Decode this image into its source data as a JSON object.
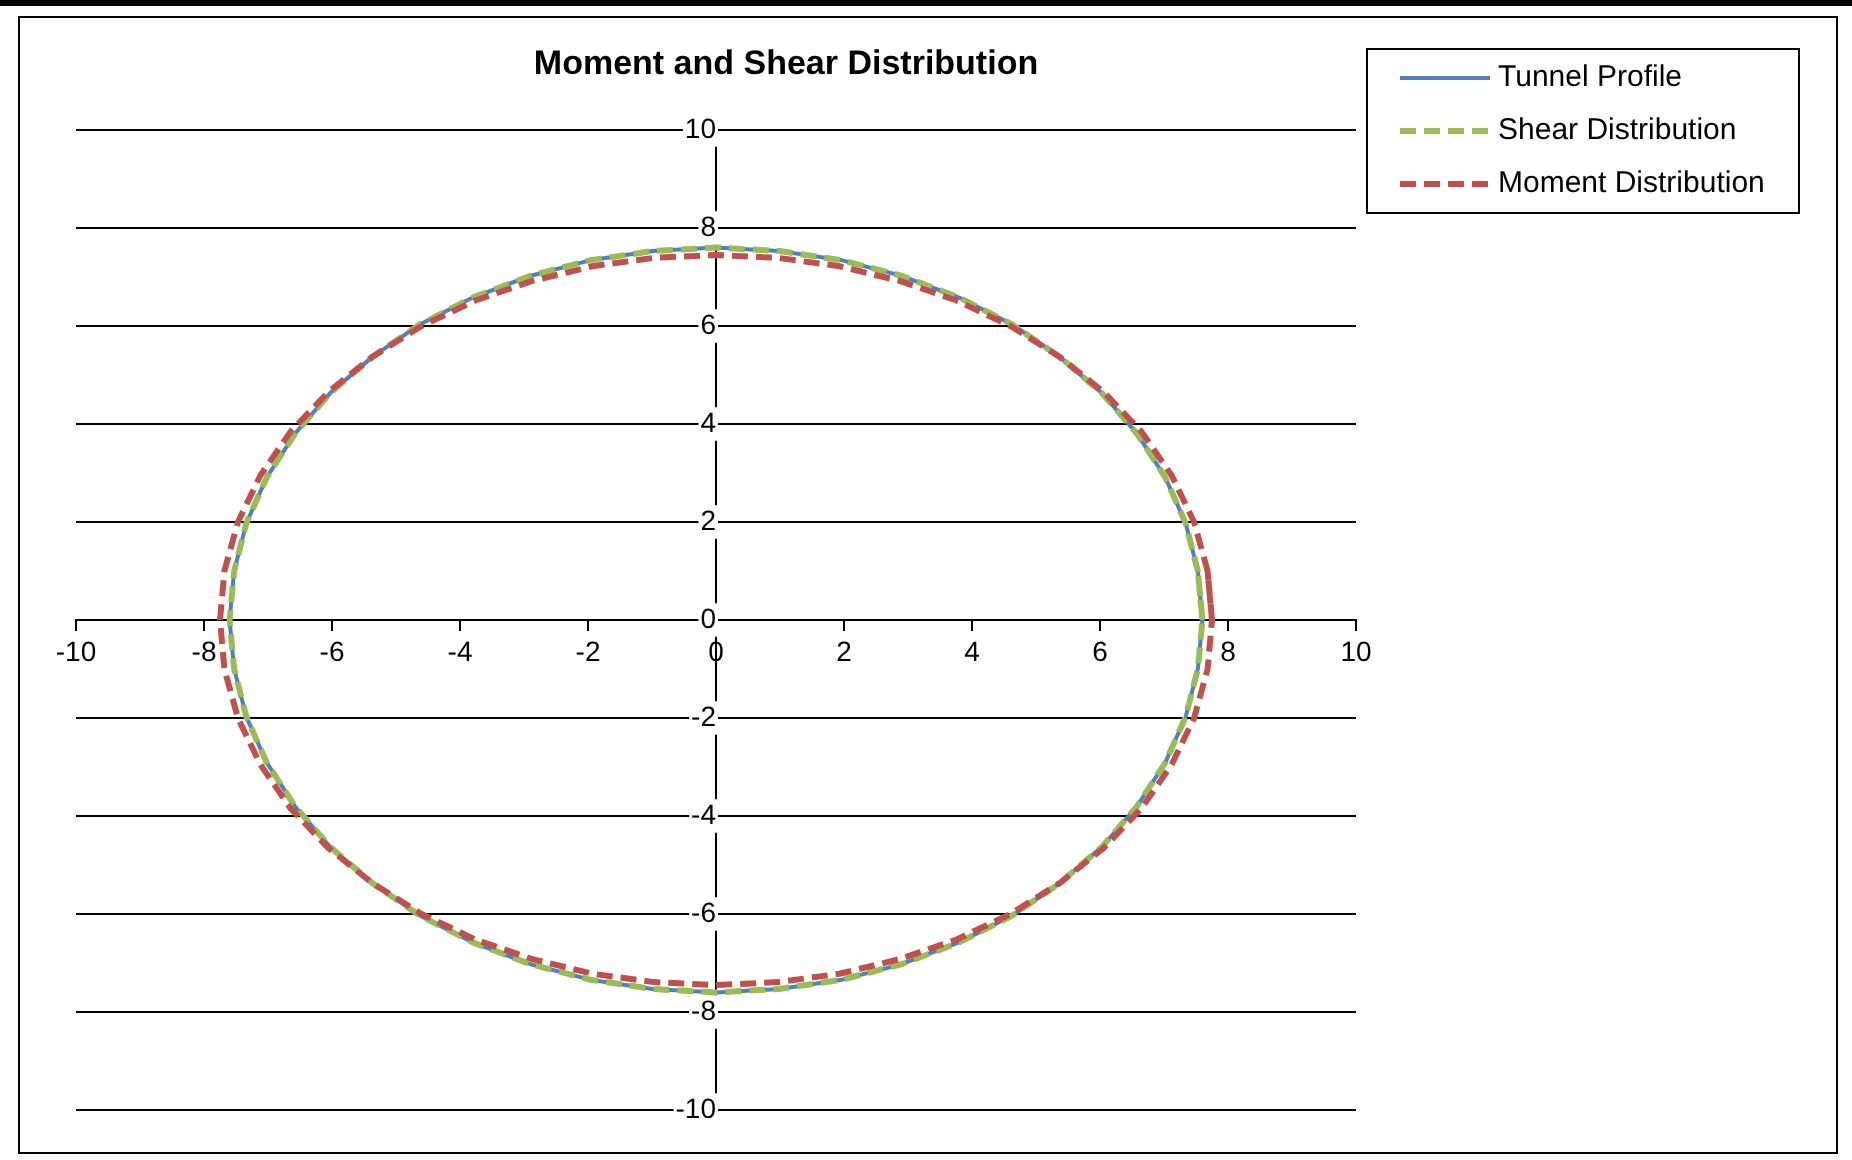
{
  "chart_data": {
    "type": "line",
    "title": "Moment and Shear Distribution",
    "xlim": [
      -10,
      10
    ],
    "xticks": [
      -10,
      -8,
      -6,
      -4,
      -2,
      0,
      2,
      4,
      6,
      8,
      10
    ],
    "ylim": [
      -10,
      10
    ],
    "yticks": [
      -10,
      -8,
      -6,
      -4,
      -2,
      0,
      2,
      4,
      6,
      8,
      10
    ],
    "grid": "y",
    "legend": "top right",
    "marker": "none",
    "series": [
      {
        "name": "Tunnel Profile",
        "color": "#4f81bd",
        "line_style": "solid",
        "x": [
          7.6,
          7.53,
          7.34,
          7.02,
          6.58,
          6.03,
          5.37,
          4.63,
          3.8,
          2.91,
          1.97,
          0.99,
          0,
          -0.99,
          -1.97,
          -2.91,
          -3.8,
          -4.63,
          -5.37,
          -6.03,
          -6.58,
          -7.02,
          -7.34,
          -7.53,
          -7.6,
          -7.53,
          -7.34,
          -7.02,
          -6.58,
          -6.03,
          -5.37,
          -4.63,
          -3.8,
          -2.91,
          -1.97,
          -0.99,
          0,
          0.99,
          1.97,
          2.91,
          3.8,
          4.63,
          5.37,
          6.03,
          6.58,
          7.02,
          7.34,
          7.53,
          7.6,
          7.53
        ],
        "values": [
          0,
          0.99,
          1.97,
          2.91,
          3.8,
          4.63,
          5.37,
          6.03,
          6.58,
          7.02,
          7.34,
          7.53,
          7.6,
          7.53,
          7.34,
          7.02,
          6.58,
          6.03,
          5.37,
          4.63,
          3.8,
          2.91,
          1.97,
          0.99,
          0,
          -0.99,
          -1.97,
          -2.91,
          -3.8,
          -4.63,
          -5.37,
          -6.03,
          -6.58,
          -7.02,
          -7.34,
          -7.53,
          -7.6,
          -7.53,
          -7.34,
          -7.02,
          -6.58,
          -6.03,
          -5.37,
          -4.63,
          -3.8,
          -2.91,
          -1.97,
          -0.99,
          0,
          0.99
        ]
      },
      {
        "name": "Shear Distribution",
        "color": "#9bbb59",
        "line_style": "dashed",
        "x": [
          7.6,
          7.53,
          7.34,
          7.02,
          6.58,
          6.03,
          5.37,
          4.63,
          3.8,
          2.91,
          1.97,
          0.99,
          0,
          -0.99,
          -1.97,
          -2.91,
          -3.8,
          -4.63,
          -5.37,
          -6.03,
          -6.58,
          -7.02,
          -7.34,
          -7.53,
          -7.6,
          -7.53,
          -7.34,
          -7.02,
          -6.58,
          -6.03,
          -5.37,
          -4.63,
          -3.8,
          -2.91,
          -1.97,
          -0.99,
          0,
          0.99,
          1.97,
          2.91,
          3.8,
          4.63,
          5.37,
          6.03,
          6.58,
          7.02,
          7.34,
          7.53,
          7.6,
          7.53
        ],
        "values": [
          0,
          0.99,
          1.97,
          2.91,
          3.8,
          4.63,
          5.37,
          6.03,
          6.58,
          7.02,
          7.34,
          7.53,
          7.6,
          7.53,
          7.34,
          7.02,
          6.58,
          6.03,
          5.37,
          4.63,
          3.8,
          2.91,
          1.97,
          0.99,
          0,
          -0.99,
          -1.97,
          -2.91,
          -3.8,
          -4.63,
          -5.37,
          -6.03,
          -6.58,
          -7.02,
          -7.34,
          -7.53,
          -7.6,
          -7.53,
          -7.34,
          -7.02,
          -6.58,
          -6.03,
          -5.37,
          -4.63,
          -3.8,
          -2.91,
          -1.97,
          -0.99,
          0,
          0.99
        ]
      },
      {
        "name": "Moment Distribution",
        "color": "#c0504d",
        "line_style": "dashed",
        "x": [
          7.75,
          7.68,
          7.47,
          7.12,
          6.65,
          6.06,
          5.37,
          4.6,
          3.76,
          2.87,
          1.93,
          0.97,
          0,
          -0.97,
          -1.93,
          -2.87,
          -3.76,
          -4.6,
          -5.37,
          -6.06,
          -6.65,
          -7.12,
          -7.47,
          -7.68,
          -7.75,
          -7.68,
          -7.47,
          -7.12,
          -6.65,
          -6.06,
          -5.37,
          -4.6,
          -3.76,
          -2.87,
          -1.93,
          -0.97,
          0,
          0.97,
          1.93,
          2.87,
          3.76,
          4.6,
          5.37,
          6.06,
          6.65,
          7.12,
          7.47,
          7.68,
          7.75,
          7.68
        ],
        "values": [
          0,
          1.01,
          2,
          2.95,
          3.84,
          4.65,
          5.37,
          6,
          6.52,
          6.92,
          7.22,
          7.39,
          7.45,
          7.39,
          7.22,
          6.92,
          6.52,
          6,
          5.37,
          4.65,
          3.84,
          2.95,
          2,
          1.01,
          0,
          -1.01,
          -2,
          -2.95,
          -3.84,
          -4.65,
          -5.37,
          -6,
          -6.52,
          -6.92,
          -7.22,
          -7.39,
          -7.45,
          -7.39,
          -7.22,
          -6.92,
          -6.52,
          -6,
          -5.37,
          -4.65,
          -3.84,
          -2.95,
          -2,
          -1.01,
          0,
          1.01
        ]
      }
    ]
  }
}
